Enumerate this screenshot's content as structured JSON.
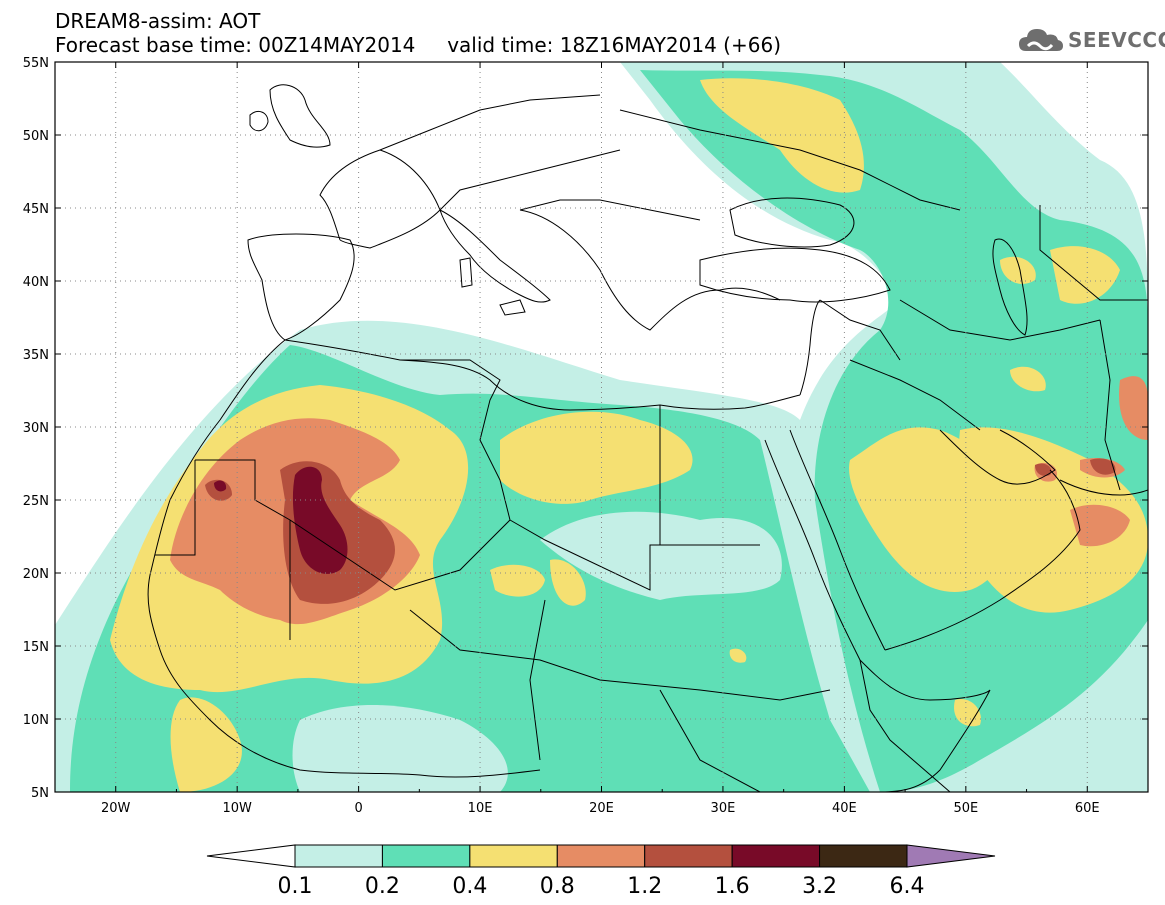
{
  "header": {
    "line1": "DREAM8-assim: AOT",
    "line2": "Forecast base time: 00Z14MAY2014     valid time: 18Z16MAY2014 (+66)"
  },
  "logo": {
    "icon": "cloud-icon",
    "text": "SEEVCCC"
  },
  "map": {
    "lon_range": [
      -25,
      65
    ],
    "lat_range": [
      5,
      55
    ],
    "lat_ticks": [
      {
        "value": 55,
        "label": "55N"
      },
      {
        "value": 50,
        "label": "50N"
      },
      {
        "value": 45,
        "label": "45N"
      },
      {
        "value": 40,
        "label": "40N"
      },
      {
        "value": 35,
        "label": "35N"
      },
      {
        "value": 30,
        "label": "30N"
      },
      {
        "value": 25,
        "label": "25N"
      },
      {
        "value": 20,
        "label": "20N"
      },
      {
        "value": 15,
        "label": "15N"
      },
      {
        "value": 10,
        "label": "10N"
      },
      {
        "value": 5,
        "label": "5N"
      }
    ],
    "lon_ticks": [
      {
        "value": -20,
        "label": "20W"
      },
      {
        "value": -10,
        "label": "10W"
      },
      {
        "value": 0,
        "label": "0"
      },
      {
        "value": 10,
        "label": "10E"
      },
      {
        "value": 20,
        "label": "20E"
      },
      {
        "value": 30,
        "label": "30E"
      },
      {
        "value": 40,
        "label": "40E"
      },
      {
        "value": 50,
        "label": "50E"
      },
      {
        "value": 60,
        "label": "60E"
      }
    ],
    "grid": "dotted"
  },
  "colorbar": {
    "labels": [
      "0.1",
      "0.2",
      "0.4",
      "0.8",
      "1.2",
      "1.6",
      "3.2",
      "6.4"
    ],
    "colors": [
      "#ffffff",
      "#c4efe6",
      "#5fdfb6",
      "#f5e072",
      "#e68c64",
      "#b4503e",
      "#780a28",
      "#3c2814",
      "#a07ab4"
    ]
  }
}
